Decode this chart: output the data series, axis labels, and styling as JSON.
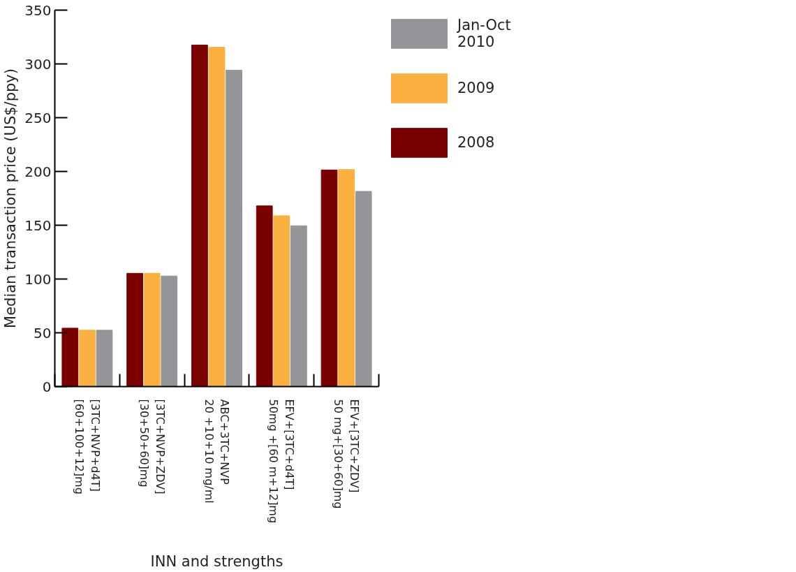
{
  "chart_data": {
    "type": "bar",
    "xlabel": "INN and strengths",
    "ylabel": "Median transaction price (US$/ppy)",
    "categories": [
      "[3TC+NVP+d4T]\n[60+100+12]mg",
      "[3TC+NVP+ZDV]\n[30+50+60]mg",
      "ABC+3TC+NVP\n20 +10+10 mg/ml",
      "EFV+[3TC+d4T]\n50mg +[60 m+12]mg",
      "EFV+[3TC+ZDV]\n50 mg+[30+60]mg"
    ],
    "series": [
      {
        "name": "2008",
        "color": "#7a0000",
        "values": [
          54.3,
          105.3,
          317.5,
          168,
          201.4
        ]
      },
      {
        "name": "2009",
        "color": "#fbb040",
        "values": [
          52.4,
          105.3,
          315.5,
          158.8,
          201.8
        ]
      },
      {
        "name": "Jan-Oct\n2010",
        "color": "#939598",
        "values": [
          52.4,
          102.8,
          294.2,
          149.5,
          181.5
        ]
      }
    ],
    "ylim": [
      0,
      350
    ],
    "yticks": [
      0,
      50,
      100,
      150,
      200,
      250,
      300,
      350
    ],
    "grid": false,
    "legend": "right"
  }
}
